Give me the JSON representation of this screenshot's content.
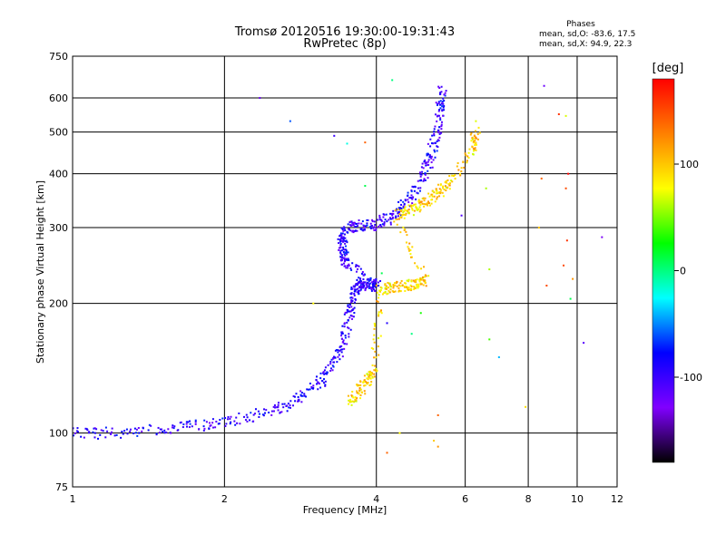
{
  "header": {
    "title_line1": "Tromsø 20120516 19:30:00-19:31:43",
    "title_line2": "RwPretec (8p)",
    "stats_title": "Phases",
    "stats_line1": "mean, sd,O: -83.6, 17.5",
    "stats_line2": "mean, sd,X:  94.9, 22.3"
  },
  "colorbar": {
    "unit": "[deg]",
    "ticks": [
      {
        "label": "100",
        "value": 100
      },
      {
        "label": "0",
        "value": 0
      },
      {
        "label": "-100",
        "value": -100
      }
    ],
    "range": [
      -180,
      180
    ],
    "colormap": "rainbow",
    "colors": [
      "#000000",
      "#8000ff",
      "#0000ff",
      "#00ffff",
      "#00ff00",
      "#ffff00",
      "#ff8000",
      "#ff0000"
    ]
  },
  "chart_data": {
    "type": "scatter",
    "title": "Tromsø 20120516 19:30:00-19:31:43",
    "subtitle": "RwPretec (8p)",
    "xlabel": "Frequency [MHz]",
    "ylabel": "Stationary phase Virtual Height [km]",
    "xscale": "log",
    "yscale": "log",
    "xlim": [
      1,
      12
    ],
    "ylim": [
      75,
      750
    ],
    "grid": true,
    "xticks": [
      {
        "label": "1",
        "value": 1
      },
      {
        "label": "2",
        "value": 2
      },
      {
        "label": "4",
        "value": 4
      },
      {
        "label": "6",
        "value": 6
      },
      {
        "label": "8",
        "value": 8
      },
      {
        "label": "10",
        "value": 10
      },
      {
        "label": "12",
        "value": 12
      }
    ],
    "yticks": [
      {
        "label": "75",
        "value": 75
      },
      {
        "label": "100",
        "value": 100
      },
      {
        "label": "200",
        "value": 200
      },
      {
        "label": "300",
        "value": 300
      },
      {
        "label": "400",
        "value": 400
      },
      {
        "label": "500",
        "value": 500
      },
      {
        "label": "600",
        "value": 600
      },
      {
        "label": "750",
        "value": 750
      }
    ],
    "series": [
      {
        "name": "O",
        "trace": [
          [
            1.0,
            100
          ],
          [
            1.2,
            100
          ],
          [
            1.5,
            102
          ],
          [
            1.8,
            104
          ],
          [
            2.1,
            107
          ],
          [
            2.5,
            113
          ],
          [
            2.8,
            120
          ],
          [
            3.1,
            132
          ],
          [
            3.3,
            145
          ],
          [
            3.45,
            165
          ],
          [
            3.55,
            190
          ],
          [
            3.62,
            210
          ],
          [
            3.68,
            222
          ],
          [
            3.78,
            220
          ],
          [
            3.9,
            222
          ],
          [
            4.0,
            220
          ],
          [
            3.5,
            245
          ],
          [
            3.45,
            260
          ],
          [
            3.42,
            280
          ],
          [
            3.5,
            300
          ],
          [
            3.7,
            303
          ],
          [
            4.0,
            305
          ],
          [
            4.3,
            318
          ],
          [
            4.6,
            345
          ],
          [
            4.9,
            385
          ],
          [
            5.1,
            430
          ],
          [
            5.25,
            490
          ],
          [
            5.35,
            560
          ],
          [
            5.4,
            630
          ]
        ]
      },
      {
        "name": "X",
        "trace": [
          [
            3.55,
            118
          ],
          [
            3.7,
            125
          ],
          [
            3.85,
            133
          ],
          [
            3.95,
            140
          ],
          [
            4.1,
            215
          ],
          [
            4.3,
            218
          ],
          [
            4.6,
            220
          ],
          [
            4.8,
            222
          ],
          [
            5.0,
            226
          ],
          [
            4.4,
            320
          ],
          [
            4.7,
            330
          ],
          [
            5.0,
            342
          ],
          [
            5.3,
            360
          ],
          [
            5.6,
            380
          ],
          [
            6.25,
            460
          ],
          [
            6.3,
            500
          ]
        ]
      }
    ],
    "scatter_noise": [
      [
        2.35,
        600,
        -120
      ],
      [
        2.7,
        530,
        -60
      ],
      [
        3.3,
        490,
        -100
      ],
      [
        3.5,
        470,
        -20
      ],
      [
        3.8,
        473,
        140
      ],
      [
        3.8,
        375,
        10
      ],
      [
        4.3,
        660,
        0
      ],
      [
        4.1,
        235,
        10
      ],
      [
        4.0,
        220,
        110
      ],
      [
        4.1,
        190,
        80
      ],
      [
        4.2,
        180,
        -90
      ],
      [
        4.7,
        170,
        0
      ],
      [
        4.9,
        190,
        30
      ],
      [
        5.3,
        110,
        140
      ],
      [
        5.3,
        93,
        120
      ],
      [
        5.2,
        96,
        100
      ],
      [
        4.2,
        90,
        140
      ],
      [
        4.45,
        100,
        80
      ],
      [
        6.6,
        370,
        60
      ],
      [
        6.3,
        530,
        70
      ],
      [
        6.7,
        240,
        60
      ],
      [
        6.7,
        165,
        40
      ],
      [
        8.5,
        390,
        140
      ],
      [
        8.4,
        300,
        100
      ],
      [
        8.7,
        220,
        150
      ],
      [
        8.6,
        640,
        -120
      ],
      [
        9.2,
        550,
        160
      ],
      [
        9.5,
        545,
        70
      ],
      [
        9.6,
        400,
        180
      ],
      [
        9.5,
        370,
        150
      ],
      [
        9.55,
        280,
        160
      ],
      [
        9.4,
        245,
        150
      ],
      [
        9.8,
        228,
        120
      ],
      [
        9.7,
        205,
        10
      ],
      [
        10.3,
        162,
        -110
      ],
      [
        11.2,
        285,
        -130
      ],
      [
        7.9,
        115,
        90
      ],
      [
        7.0,
        150,
        -40
      ],
      [
        5.9,
        320,
        -110
      ],
      [
        3.0,
        200,
        80
      ]
    ]
  }
}
